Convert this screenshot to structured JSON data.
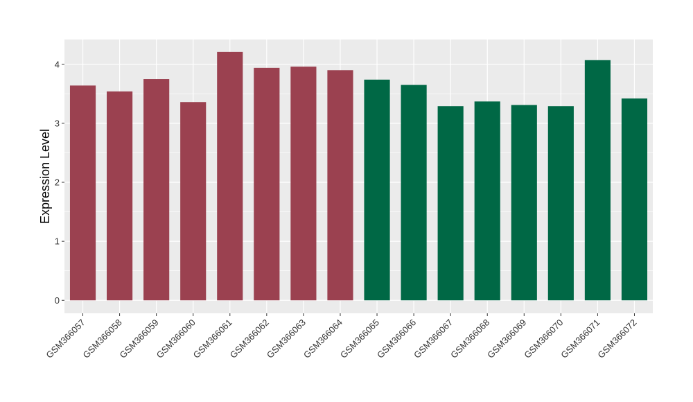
{
  "chart_data": {
    "type": "bar",
    "ylabel": "Expression Level",
    "xlabel": "",
    "ylim": [
      -0.22,
      4.42
    ],
    "yticks": [
      0,
      1,
      2,
      3,
      4
    ],
    "grid": true,
    "categories": [
      "GSM366057",
      "GSM366058",
      "GSM366059",
      "GSM366060",
      "GSM366061",
      "GSM366062",
      "GSM366063",
      "GSM366064",
      "GSM366065",
      "GSM366066",
      "GSM366067",
      "GSM366068",
      "GSM366069",
      "GSM366070",
      "GSM366071",
      "GSM366072"
    ],
    "values": [
      3.64,
      3.54,
      3.75,
      3.36,
      4.21,
      3.94,
      3.96,
      3.9,
      3.74,
      3.65,
      3.29,
      3.37,
      3.31,
      3.29,
      4.07,
      3.42
    ],
    "bar_colors": [
      "#9b4150",
      "#9b4150",
      "#9b4150",
      "#9b4150",
      "#9b4150",
      "#9b4150",
      "#9b4150",
      "#9b4150",
      "#006845",
      "#006845",
      "#006845",
      "#006845",
      "#006845",
      "#006845",
      "#006845",
      "#006845"
    ],
    "colors": {
      "panel_bg": "#ebebeb",
      "grid": "#ffffff",
      "group_a": "#9b4150",
      "group_b": "#006845"
    }
  }
}
